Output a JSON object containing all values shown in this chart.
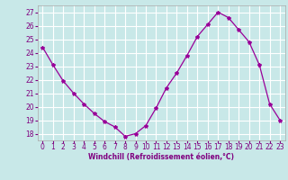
{
  "x": [
    0,
    1,
    2,
    3,
    4,
    5,
    6,
    7,
    8,
    9,
    10,
    11,
    12,
    13,
    14,
    15,
    16,
    17,
    18,
    19,
    20,
    21,
    22,
    23
  ],
  "y": [
    24.4,
    23.1,
    21.9,
    21.0,
    20.2,
    19.5,
    18.9,
    18.5,
    17.8,
    18.0,
    18.6,
    19.9,
    21.4,
    22.5,
    23.8,
    25.2,
    26.1,
    27.0,
    26.6,
    25.7,
    24.8,
    23.1,
    20.2,
    19.0
  ],
  "line_color": "#990099",
  "marker": "*",
  "marker_size": 3,
  "bg_color": "#c8e8e8",
  "grid_color": "#ffffff",
  "xlabel": "Windchill (Refroidissement éolien,°C)",
  "xlabel_color": "#800080",
  "tick_color": "#800080",
  "ylim": [
    17.5,
    27.5
  ],
  "xlim": [
    -0.5,
    23.5
  ],
  "yticks": [
    18,
    19,
    20,
    21,
    22,
    23,
    24,
    25,
    26,
    27
  ],
  "xticks": [
    0,
    1,
    2,
    3,
    4,
    5,
    6,
    7,
    8,
    9,
    10,
    11,
    12,
    13,
    14,
    15,
    16,
    17,
    18,
    19,
    20,
    21,
    22,
    23
  ],
  "xticklabels": [
    "0",
    "1",
    "2",
    "3",
    "4",
    "5",
    "6",
    "7",
    "8",
    "9",
    "10",
    "11",
    "12",
    "13",
    "14",
    "15",
    "16",
    "17",
    "18",
    "19",
    "20",
    "21",
    "22",
    "23"
  ]
}
